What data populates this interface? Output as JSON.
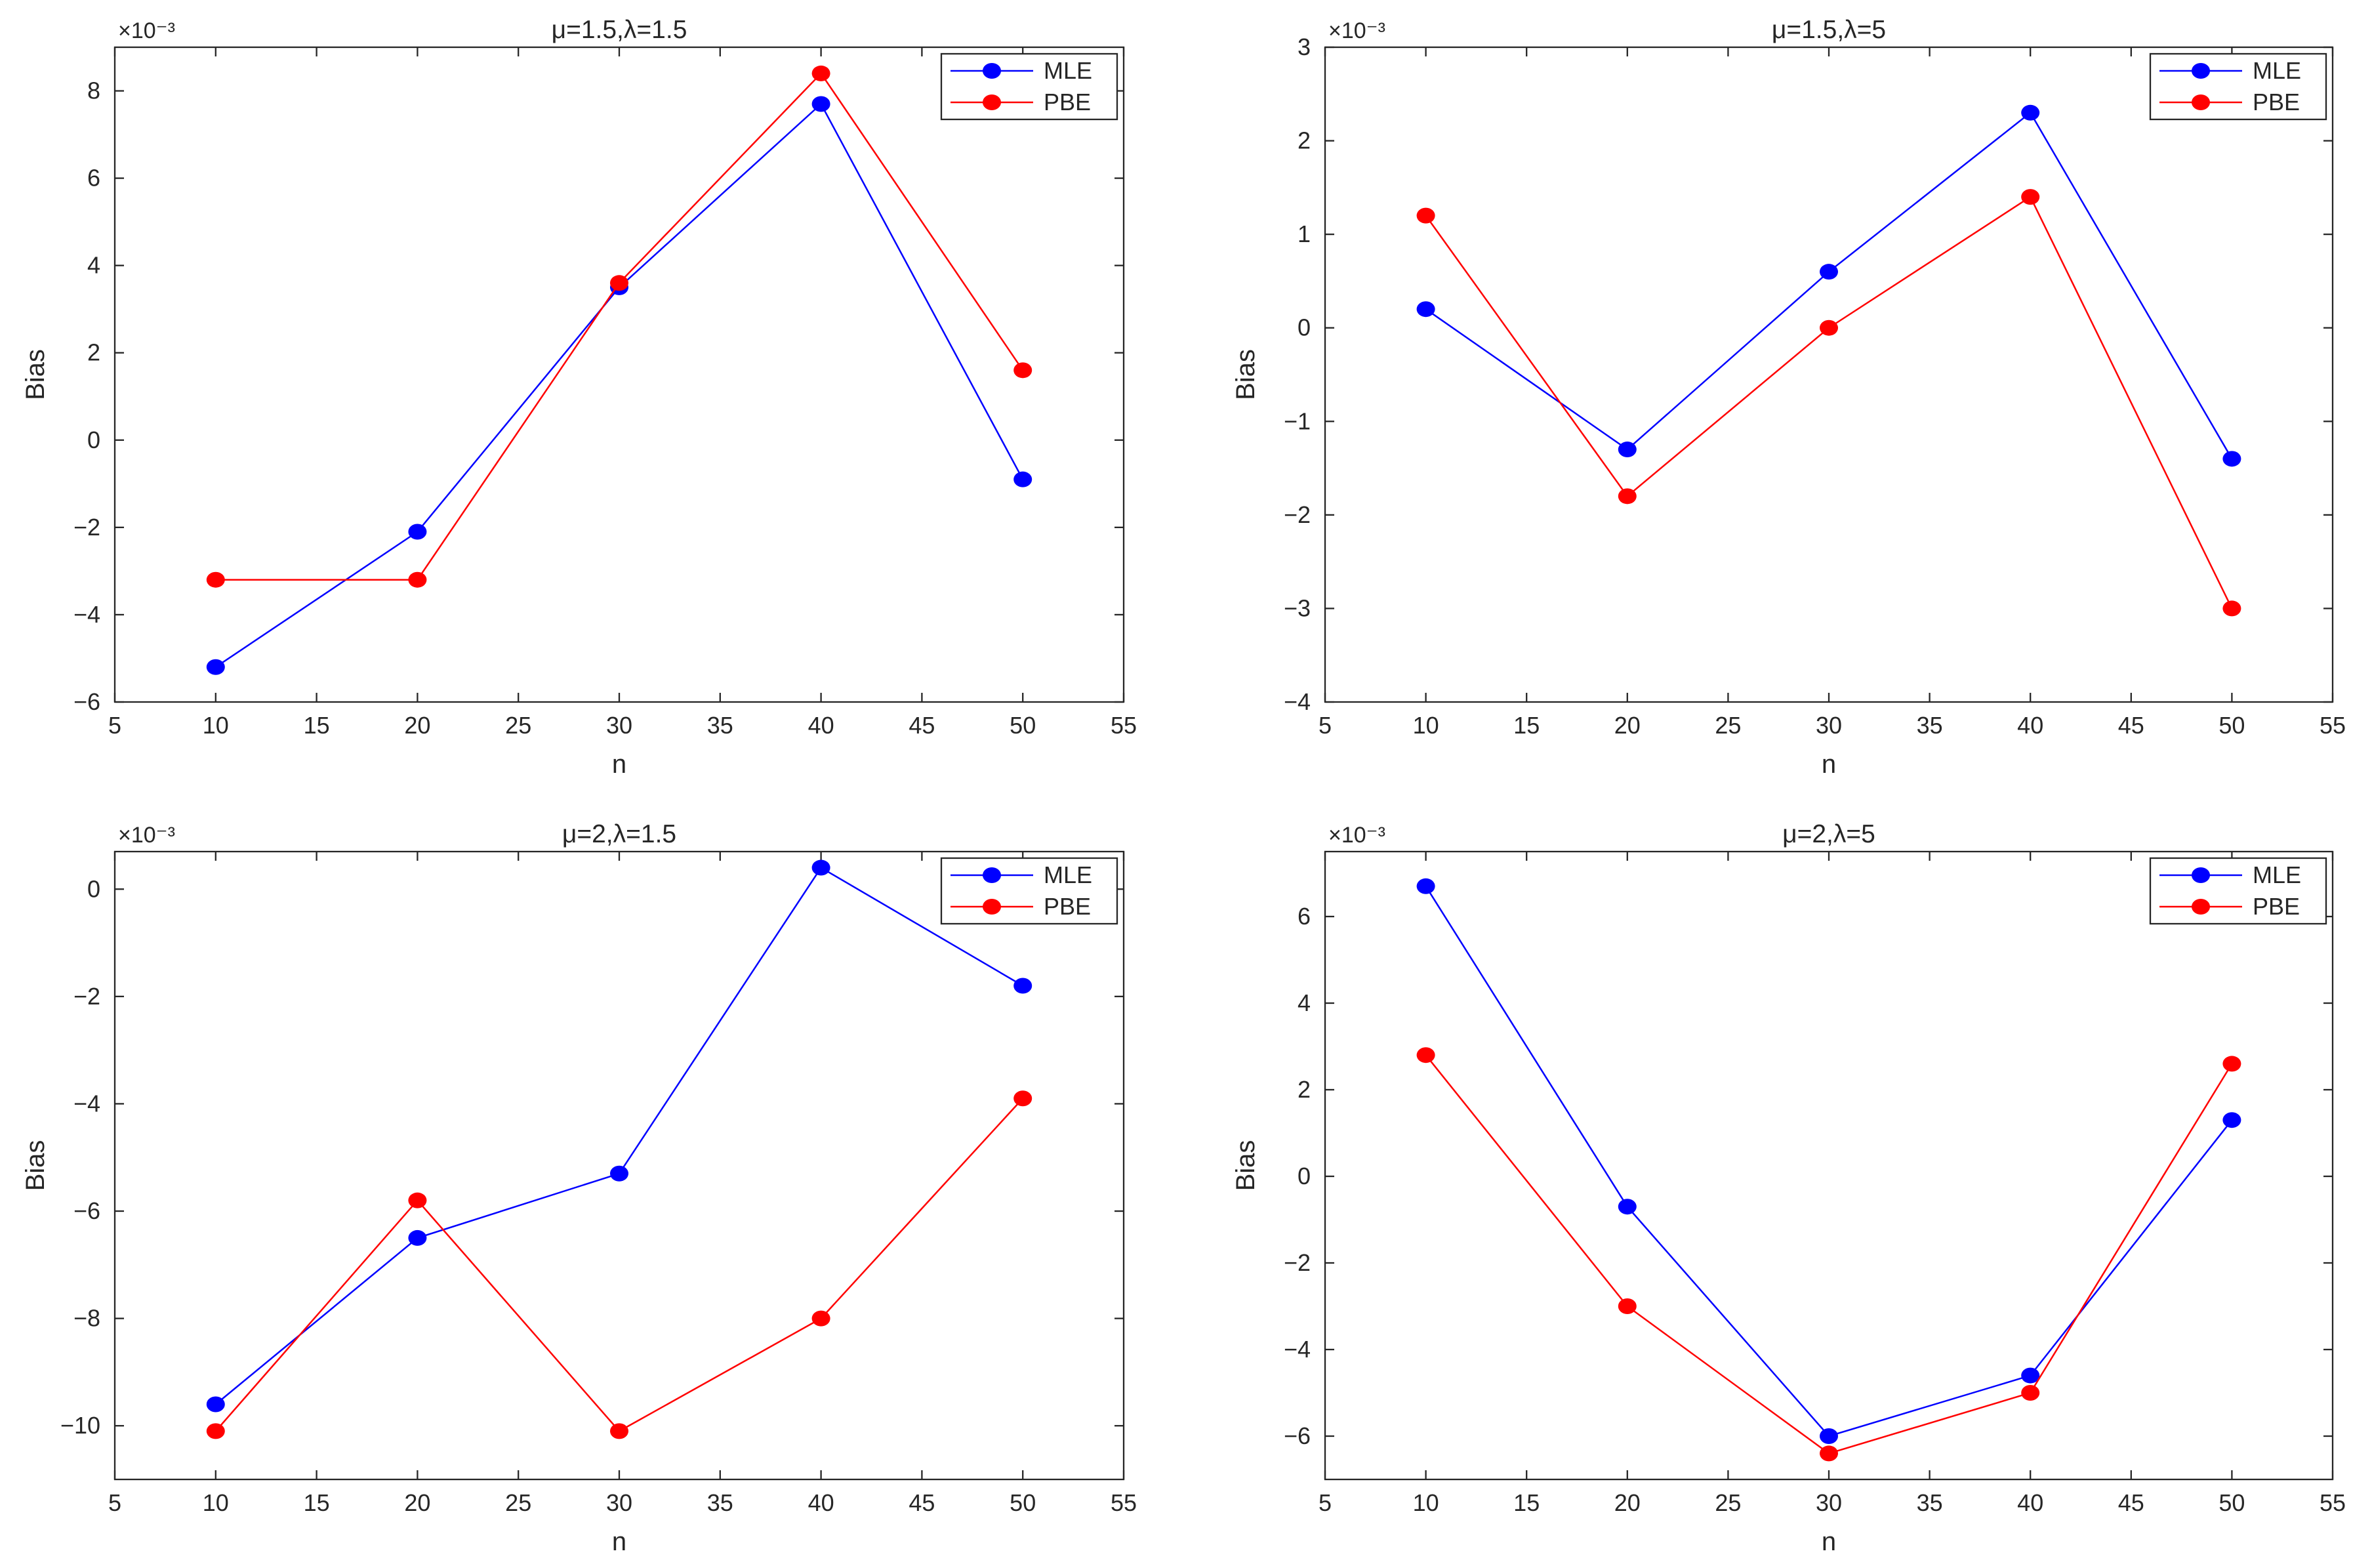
{
  "figure": {
    "background": "#ffffff"
  },
  "chart_data": [
    {
      "type": "line",
      "title": "μ=1.5,λ=1.5",
      "xlabel": "n",
      "ylabel": "Bias",
      "exponent_label": "×10⁻³",
      "xlim": [
        5,
        55
      ],
      "ylim": [
        -6,
        9
      ],
      "xticks": [
        5,
        10,
        15,
        20,
        25,
        30,
        35,
        40,
        45,
        50,
        55
      ],
      "yticks": [
        -6,
        -4,
        -2,
        0,
        2,
        4,
        6,
        8
      ],
      "x": [
        10,
        20,
        30,
        40,
        50
      ],
      "series": [
        {
          "name": "MLE",
          "color": "#0000ff",
          "values": [
            -5.2,
            -2.1,
            3.5,
            7.7,
            -0.9
          ]
        },
        {
          "name": "PBE",
          "color": "#ff0000",
          "values": [
            -3.2,
            -3.2,
            3.6,
            8.4,
            1.6
          ]
        }
      ],
      "legend": "top-right"
    },
    {
      "type": "line",
      "title": "μ=1.5,λ=5",
      "xlabel": "n",
      "ylabel": "Bias",
      "exponent_label": "×10⁻³",
      "xlim": [
        5,
        55
      ],
      "ylim": [
        -4,
        3
      ],
      "xticks": [
        5,
        10,
        15,
        20,
        25,
        30,
        35,
        40,
        45,
        50,
        55
      ],
      "yticks": [
        -4,
        -3,
        -2,
        -1,
        0,
        1,
        2,
        3
      ],
      "x": [
        10,
        20,
        30,
        40,
        50
      ],
      "series": [
        {
          "name": "MLE",
          "color": "#0000ff",
          "values": [
            0.2,
            -1.3,
            0.6,
            2.3,
            -1.4
          ]
        },
        {
          "name": "PBE",
          "color": "#ff0000",
          "values": [
            1.2,
            -1.8,
            0.0,
            1.4,
            -3.0
          ]
        }
      ],
      "legend": "top-right"
    },
    {
      "type": "line",
      "title": "μ=2,λ=1.5",
      "xlabel": "n",
      "ylabel": "Bias",
      "exponent_label": "×10⁻³",
      "xlim": [
        5,
        55
      ],
      "ylim": [
        -11,
        0.7
      ],
      "xticks": [
        5,
        10,
        15,
        20,
        25,
        30,
        35,
        40,
        45,
        50,
        55
      ],
      "yticks": [
        -10,
        -8,
        -6,
        -4,
        -2,
        0
      ],
      "x": [
        10,
        20,
        30,
        40,
        50
      ],
      "series": [
        {
          "name": "MLE",
          "color": "#0000ff",
          "values": [
            -9.6,
            -6.5,
            -5.3,
            0.4,
            -1.8
          ]
        },
        {
          "name": "PBE",
          "color": "#ff0000",
          "values": [
            -10.1,
            -5.8,
            -10.1,
            -8.0,
            -3.9
          ]
        }
      ],
      "legend": "top-right"
    },
    {
      "type": "line",
      "title": "μ=2,λ=5",
      "xlabel": "n",
      "ylabel": "Bias",
      "exponent_label": "×10⁻³",
      "xlim": [
        5,
        55
      ],
      "ylim": [
        -7,
        7.5
      ],
      "xticks": [
        5,
        10,
        15,
        20,
        25,
        30,
        35,
        40,
        45,
        50,
        55
      ],
      "yticks": [
        -6,
        -4,
        -2,
        0,
        2,
        4,
        6
      ],
      "x": [
        10,
        20,
        30,
        40,
        50
      ],
      "series": [
        {
          "name": "MLE",
          "color": "#0000ff",
          "values": [
            6.7,
            -0.7,
            -6.0,
            -4.6,
            1.3
          ]
        },
        {
          "name": "PBE",
          "color": "#ff0000",
          "values": [
            2.8,
            -3.0,
            -6.4,
            -5.0,
            2.6
          ]
        }
      ],
      "legend": "top-right"
    }
  ]
}
